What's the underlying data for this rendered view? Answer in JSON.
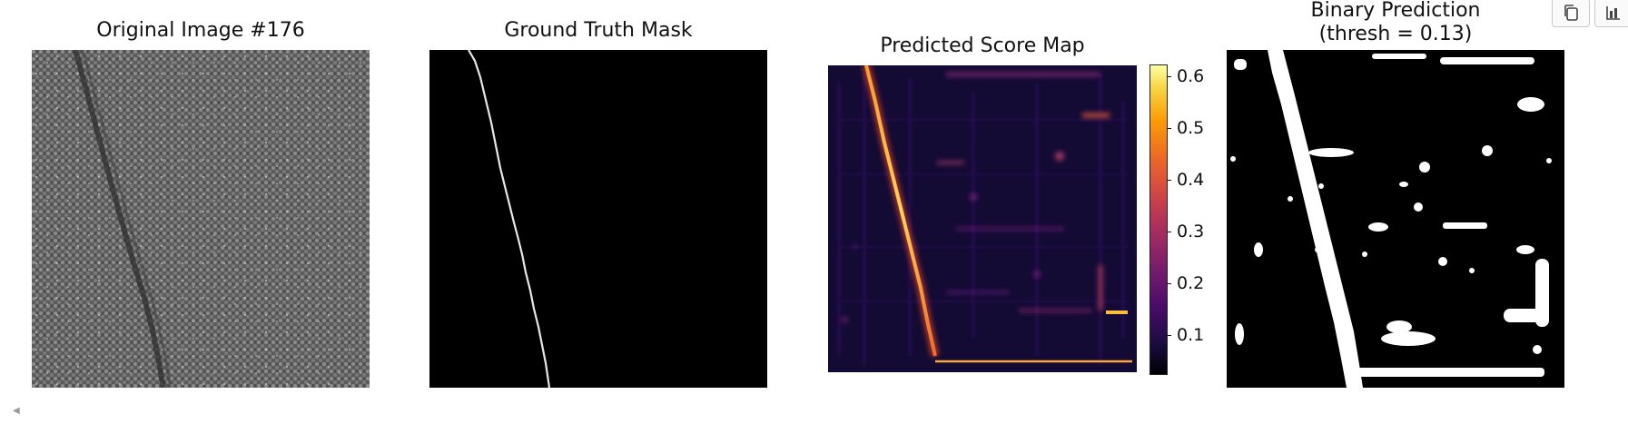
{
  "panels": {
    "original_title": "Original Image #176",
    "ground_truth_title": "Ground Truth Mask",
    "score_map_title": "Predicted Score Map",
    "binary_title": "Binary Prediction\n(thresh = 0.13)"
  },
  "colorbar": {
    "ticks": [
      "0.6",
      "0.5",
      "0.4",
      "0.3",
      "0.2",
      "0.1"
    ],
    "colormap": "inferno"
  },
  "toolbar": {
    "copy_icon": "copy-icon",
    "chart_icon": "bar-chart-icon"
  },
  "colors": {
    "mask_background": "#000000",
    "mask_foreground": "#ffffff",
    "score_low": "#1a0b3a",
    "score_high": "#fcffa4"
  }
}
